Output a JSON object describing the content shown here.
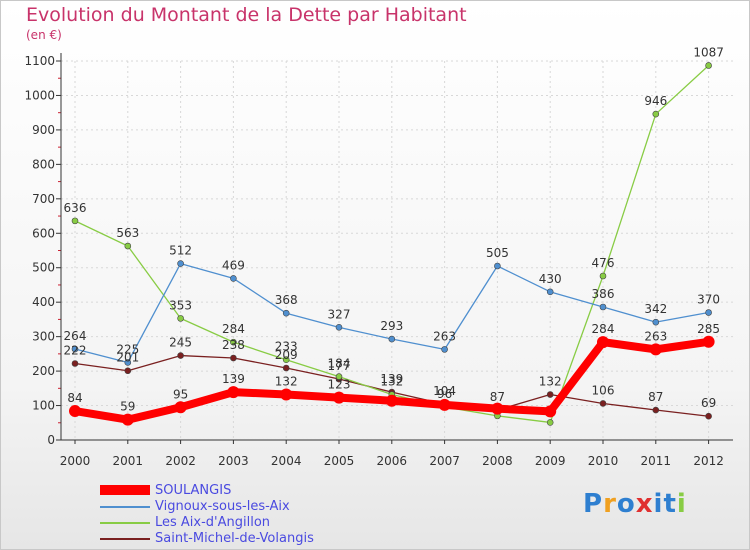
{
  "chart_data": {
    "type": "line",
    "title": "Evolution du Montant de la Dette par Habitant",
    "ylabel": "(en €)",
    "xlabel": "",
    "ylim": [
      0,
      1100
    ],
    "yticks": [
      0,
      100,
      200,
      300,
      400,
      500,
      600,
      700,
      800,
      900,
      1000,
      1100
    ],
    "grid": true,
    "legend_position": "bottom-left",
    "categories": [
      "2000",
      "2001",
      "2002",
      "2003",
      "2004",
      "2005",
      "2006",
      "2007",
      "2008",
      "2009",
      "2010",
      "2011",
      "2012"
    ],
    "series": [
      {
        "name": "SOULANGIS",
        "color": "#ff0000",
        "values": [
          84,
          59,
          95,
          139,
          132,
          123,
          114,
          102,
          91,
          83,
          284,
          263,
          285
        ],
        "labels": [
          "84",
          "59",
          "95",
          "139",
          "132",
          "123",
          "",
          "",
          "",
          "",
          "284",
          "263",
          "285"
        ]
      },
      {
        "name": "Vignoux-sous-les-Aix",
        "color": "#4f8fcf",
        "values": [
          264,
          225,
          512,
          469,
          368,
          327,
          293,
          263,
          505,
          430,
          386,
          342,
          370
        ],
        "labels": [
          "264",
          "225",
          "512",
          "469",
          "368",
          "327",
          "293",
          "263",
          "505",
          "430",
          "386",
          "342",
          "370"
        ]
      },
      {
        "name": "Les Aix-d'Angillon",
        "color": "#88cc44",
        "values": [
          636,
          563,
          353,
          284,
          233,
          184,
          132,
          96,
          70,
          51,
          476,
          946,
          1087
        ],
        "labels": [
          "636",
          "563",
          "353",
          "284",
          "233",
          "184",
          "132",
          "96",
          "",
          "",
          "476",
          "946",
          "1087"
        ]
      },
      {
        "name": "Saint-Michel-de-Volangis",
        "color": "#7a2020",
        "values": [
          222,
          201,
          245,
          238,
          209,
          177,
          139,
          104,
          87,
          132,
          106,
          87,
          69
        ],
        "labels": [
          "222",
          "201",
          "245",
          "238",
          "209",
          "177",
          "139",
          "104",
          "87",
          "132",
          "106",
          "87",
          "69"
        ]
      }
    ]
  },
  "legend": {
    "items": [
      {
        "label": "SOULANGIS",
        "color": "#ff0000"
      },
      {
        "label": "Vignoux-sous-les-Aix",
        "color": "#4f8fcf"
      },
      {
        "label": "Les Aix-d'Angillon",
        "color": "#88cc44"
      },
      {
        "label": "Saint-Michel-de-Volangis",
        "color": "#7a2020"
      }
    ]
  },
  "brand": {
    "letters": [
      {
        "ch": "P",
        "color": "#2e7fd0"
      },
      {
        "ch": "r",
        "color": "#f0a020"
      },
      {
        "ch": "o",
        "color": "#2e7fd0"
      },
      {
        "ch": "x",
        "color": "#e03030"
      },
      {
        "ch": "i",
        "color": "#2e7fd0"
      },
      {
        "ch": "t",
        "color": "#2e7fd0"
      },
      {
        "ch": "i",
        "color": "#88cc44"
      }
    ]
  }
}
